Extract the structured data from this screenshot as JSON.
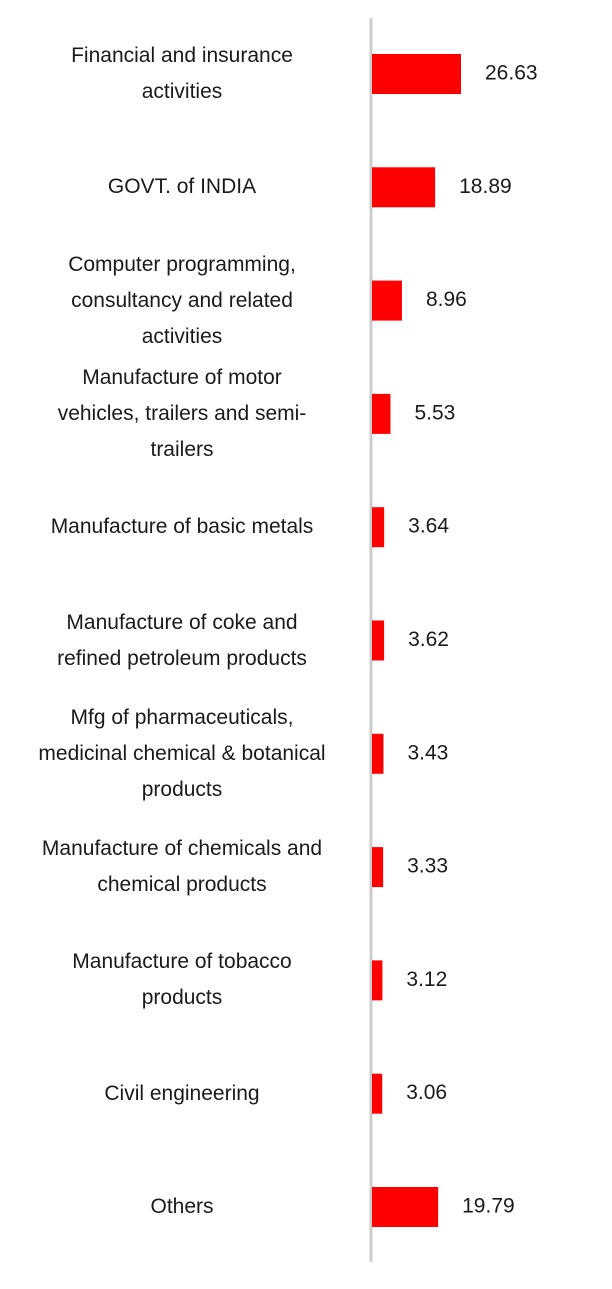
{
  "chart_data": {
    "type": "bar",
    "orientation": "horizontal",
    "categories": [
      [
        "Financial and insurance",
        "activities"
      ],
      [
        "GOVT. of INDIA"
      ],
      [
        "Computer programming,",
        "consultancy and related",
        "activities"
      ],
      [
        "Manufacture of motor",
        "vehicles, trailers and semi-",
        "trailers"
      ],
      [
        "Manufacture of basic metals"
      ],
      [
        "Manufacture of coke and",
        "refined petroleum products"
      ],
      [
        "Mfg of pharmaceuticals,",
        "medicinal chemical & botanical",
        "products"
      ],
      [
        "Manufacture of chemicals and",
        "chemical products"
      ],
      [
        "Manufacture of tobacco",
        "products"
      ],
      [
        "Civil engineering"
      ],
      [
        "Others"
      ]
    ],
    "values": [
      26.63,
      18.89,
      8.96,
      5.53,
      3.64,
      3.62,
      3.43,
      3.33,
      3.12,
      3.06,
      19.79
    ],
    "value_labels": [
      "26.63",
      "18.89",
      "8.96",
      "5.53",
      "3.64",
      "3.62",
      "3.43",
      "3.33",
      "3.12",
      "3.06",
      "19.79"
    ],
    "xlim": [
      0,
      26.63
    ],
    "grid": false,
    "legend": "none",
    "bar_color": "#ff0000",
    "axis_color": "#cccccc"
  }
}
